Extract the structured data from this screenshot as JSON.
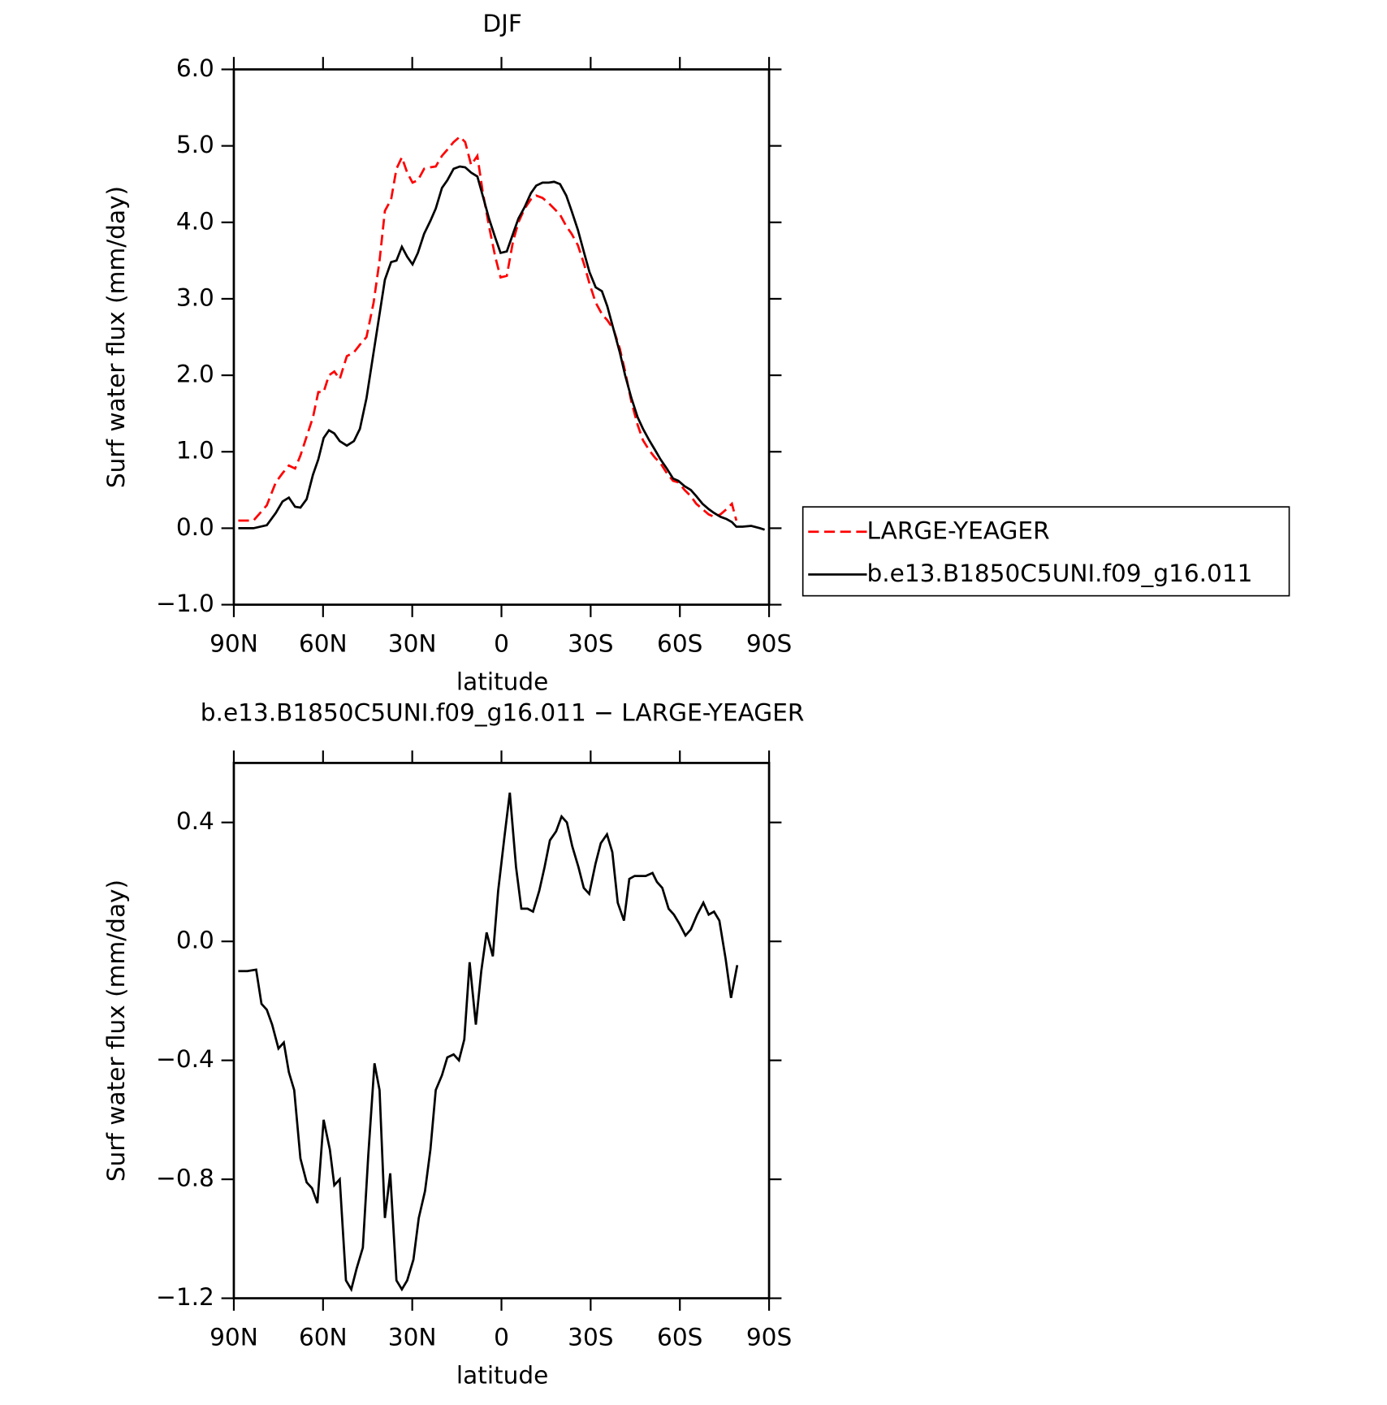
{
  "chart_data": [
    {
      "type": "line",
      "title": "DJF",
      "xlabel": "latitude",
      "ylabel": "Surf water flux (mm/day)",
      "xlim": [
        90,
        -90
      ],
      "ylim": [
        -1,
        6
      ],
      "xticks": [
        {
          "value": 90,
          "label": "90N"
        },
        {
          "value": 60,
          "label": "60N"
        },
        {
          "value": 30,
          "label": "30N"
        },
        0,
        {
          "value": -30,
          "label": "30S"
        },
        {
          "value": -60,
          "label": "60S"
        },
        {
          "value": -90,
          "label": "90S"
        }
      ],
      "yticks": [
        {
          "value": -1,
          "label": "−1.0"
        },
        {
          "value": 0,
          "label": "0.0"
        },
        {
          "value": 1,
          "label": "1.0"
        },
        {
          "value": 2,
          "label": "2.0"
        },
        {
          "value": 3,
          "label": "3.0"
        },
        {
          "value": 4,
          "label": "4.0"
        },
        {
          "value": 5,
          "label": "5.0"
        },
        {
          "value": 6,
          "label": "6.0"
        }
      ],
      "legend": "outside-right",
      "x": [
        88.5,
        83.4,
        78.9,
        75.9,
        73.6,
        71.5,
        69.4,
        67.6,
        65.5,
        63.4,
        61.6,
        59.8,
        58.0,
        56.2,
        54.4,
        52.0,
        49.6,
        47.6,
        45.4,
        43.0,
        41.0,
        39.2,
        37.1,
        35.3,
        33.5,
        31.7,
        29.9,
        28.1,
        26.0,
        23.9,
        22.1,
        20.0,
        18.2,
        16.1,
        14.0,
        12.2,
        10.2,
        8.1,
        6.3,
        4.2,
        2.1,
        0.3,
        -1.8,
        -3.9,
        -5.7,
        -7.8,
        -9.9,
        -11.7,
        -13.8,
        -15.9,
        -17.7,
        -19.7,
        -21.8,
        -23.6,
        -25.7,
        -27.8,
        -29.6,
        -31.7,
        -33.8,
        -35.6,
        -37.7,
        -39.8,
        -41.6,
        -43.7,
        -45.8,
        -47.6,
        -49.7,
        -51.7,
        -53.5,
        -55.6,
        -57.7,
        -59.5,
        -61.6,
        -63.7,
        -65.5,
        -67.6,
        -69.7,
        -71.5,
        -73.6,
        -75.7,
        -77.5,
        -79.0,
        -81.1,
        -84.0,
        -87.0,
        -88.5
      ],
      "series": [
        {
          "name": "LARGE-YEAGER",
          "color": "#ff0000",
          "dashed": true,
          "values": [
            0.1,
            0.1,
            0.3,
            0.6,
            0.72,
            0.82,
            0.78,
            0.95,
            1.2,
            1.45,
            1.78,
            1.78,
            2.0,
            2.05,
            1.95,
            2.25,
            2.3,
            2.4,
            2.5,
            2.95,
            3.5,
            4.15,
            4.3,
            4.7,
            4.85,
            4.65,
            4.52,
            4.55,
            4.7,
            4.72,
            4.73,
            4.87,
            4.95,
            5.05,
            5.12,
            5.05,
            4.75,
            4.87,
            4.4,
            3.95,
            3.55,
            3.28,
            3.3,
            3.75,
            4.0,
            4.18,
            4.3,
            4.35,
            4.32,
            4.25,
            4.18,
            4.1,
            3.95,
            3.85,
            3.7,
            3.45,
            3.2,
            2.95,
            2.8,
            2.72,
            2.6,
            2.35,
            2.05,
            1.65,
            1.35,
            1.15,
            1.02,
            0.92,
            0.85,
            0.72,
            0.62,
            0.6,
            0.5,
            0.42,
            0.32,
            0.25,
            0.18,
            0.15,
            0.18,
            0.25,
            0.32,
            0.1,
            null,
            null,
            null,
            null
          ]
        },
        {
          "name": "b.e13.B1850C5UNI.f09_g16.011",
          "color": "#000000",
          "dashed": false,
          "values": [
            0.0,
            0.0,
            0.04,
            0.2,
            0.35,
            0.4,
            0.28,
            0.27,
            0.38,
            0.7,
            0.9,
            1.18,
            1.28,
            1.24,
            1.14,
            1.08,
            1.14,
            1.3,
            1.7,
            2.3,
            2.8,
            3.25,
            3.48,
            3.5,
            3.68,
            3.55,
            3.45,
            3.6,
            3.85,
            4.02,
            4.18,
            4.45,
            4.55,
            4.7,
            4.73,
            4.72,
            4.65,
            4.6,
            4.35,
            4.05,
            3.8,
            3.6,
            3.62,
            3.85,
            4.05,
            4.2,
            4.38,
            4.48,
            4.52,
            4.52,
            4.53,
            4.5,
            4.35,
            4.15,
            3.9,
            3.6,
            3.35,
            3.15,
            3.1,
            2.9,
            2.6,
            2.3,
            2.0,
            1.7,
            1.45,
            1.3,
            1.15,
            1.02,
            0.9,
            0.78,
            0.65,
            0.62,
            0.55,
            0.5,
            0.42,
            0.32,
            0.25,
            0.2,
            0.15,
            0.12,
            0.08,
            0.02,
            0.02,
            0.03,
            0.0,
            -0.02
          ]
        }
      ]
    },
    {
      "type": "line",
      "title": "b.e13.B1850C5UNI.f09_g16.011 − LARGE-YEAGER",
      "xlabel": "latitude",
      "ylabel": "Surf water flux (mm/day)",
      "xlim": [
        90,
        -90
      ],
      "ylim": [
        -1.2,
        0.6
      ],
      "xticks": [
        {
          "value": 90,
          "label": "90N"
        },
        {
          "value": 60,
          "label": "60N"
        },
        {
          "value": 30,
          "label": "30N"
        },
        0,
        {
          "value": -30,
          "label": "30S"
        },
        {
          "value": -60,
          "label": "60S"
        },
        {
          "value": -90,
          "label": "90S"
        }
      ],
      "yticks": [
        {
          "value": -1.2,
          "label": "−1.2"
        },
        {
          "value": -0.8,
          "label": "−0.8"
        },
        {
          "value": -0.4,
          "label": "−0.4"
        },
        {
          "value": 0,
          "label": "0.0"
        },
        0.4
      ],
      "x": [
        88.5,
        85.5,
        82.5,
        80.7,
        78.9,
        77.1,
        75.0,
        73.2,
        71.5,
        69.7,
        67.6,
        65.5,
        63.7,
        61.9,
        59.8,
        57.7,
        56.2,
        54.4,
        52.3,
        50.5,
        48.7,
        46.6,
        44.8,
        42.7,
        41.0,
        39.2,
        37.4,
        35.3,
        33.5,
        31.7,
        29.6,
        27.8,
        25.7,
        23.9,
        22.1,
        20.0,
        18.2,
        16.1,
        14.3,
        12.5,
        10.7,
        8.6,
        6.8,
        5.0,
        2.9,
        1.1,
        -1.0,
        -2.8,
        -4.9,
        -6.7,
        -8.8,
        -10.6,
        -12.7,
        -14.5,
        -16.3,
        -18.4,
        -20.2,
        -22.0,
        -23.8,
        -25.9,
        -27.7,
        -29.5,
        -31.6,
        -33.4,
        -35.5,
        -37.3,
        -39.1,
        -41.2,
        -43.0,
        -44.8,
        -46.9,
        -48.5,
        -50.8,
        -52.3,
        -54.1,
        -56.2,
        -58.0,
        -59.8,
        -61.9,
        -63.7,
        -65.8,
        -67.9,
        -69.7,
        -71.5,
        -73.3,
        -75.4,
        -77.2,
        -79.3
      ],
      "series": [
        {
          "color": "#000000",
          "dashed": false,
          "values": [
            -0.1,
            -0.1,
            -0.095,
            -0.21,
            -0.23,
            -0.28,
            -0.36,
            -0.34,
            -0.44,
            -0.5,
            -0.73,
            -0.81,
            -0.83,
            -0.88,
            -0.6,
            -0.7,
            -0.82,
            -0.8,
            -1.14,
            -1.17,
            -1.1,
            -1.03,
            -0.72,
            -0.41,
            -0.5,
            -0.93,
            -0.78,
            -1.14,
            -1.17,
            -1.14,
            -1.07,
            -0.93,
            -0.84,
            -0.7,
            -0.5,
            -0.45,
            -0.39,
            -0.38,
            -0.4,
            -0.33,
            -0.07,
            -0.28,
            -0.1,
            0.03,
            -0.05,
            0.17,
            0.35,
            0.5,
            0.25,
            0.11,
            0.11,
            0.1,
            0.17,
            0.25,
            0.34,
            0.37,
            0.42,
            0.4,
            0.32,
            0.25,
            0.18,
            0.16,
            0.26,
            0.33,
            0.36,
            0.3,
            0.13,
            0.07,
            0.21,
            0.22,
            0.22,
            0.22,
            0.23,
            0.2,
            0.18,
            0.11,
            0.09,
            0.06,
            0.02,
            0.04,
            0.09,
            0.13,
            0.09,
            0.1,
            0.07,
            -0.06,
            -0.19,
            -0.08
          ]
        }
      ]
    }
  ]
}
